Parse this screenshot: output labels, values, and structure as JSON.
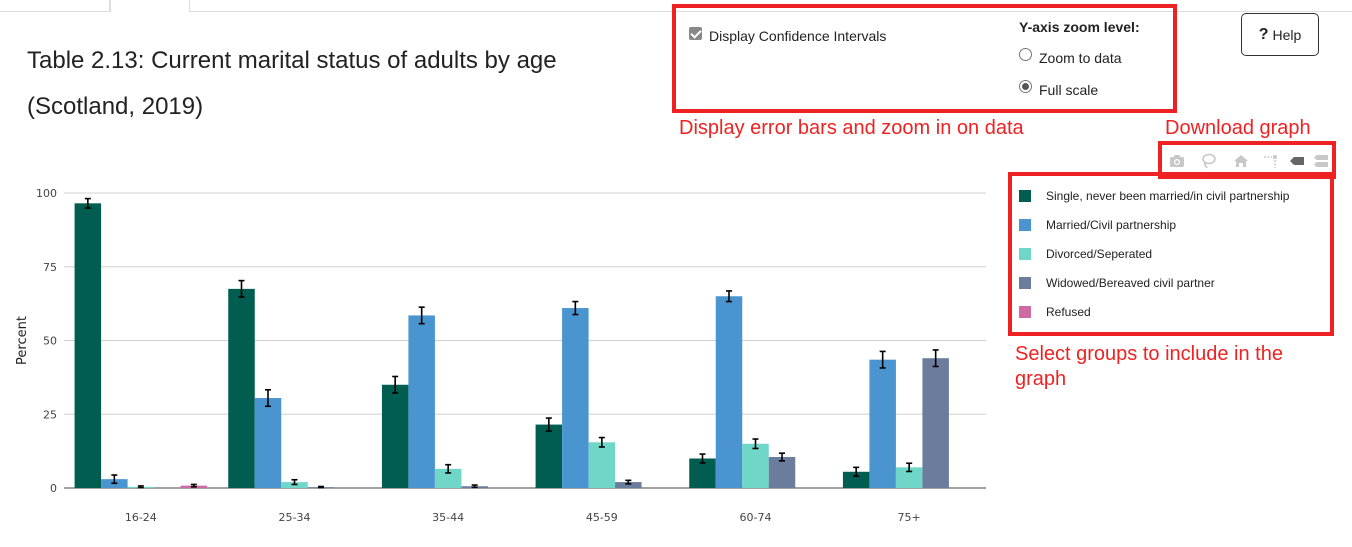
{
  "page": {
    "title_line1": "Table 2.13: Current marital status of adults by age",
    "title_line2": "(Scotland, 2019)"
  },
  "controls": {
    "ci_label": "Display Confidence Intervals",
    "ci_checked": true,
    "zoom_title": "Y-axis zoom level:",
    "zoom_options": [
      {
        "label": "Zoom to data",
        "selected": false
      },
      {
        "label": "Full scale",
        "selected": true
      }
    ]
  },
  "help": {
    "label": "Help",
    "icon": "?"
  },
  "annotations": {
    "controls": "Display error bars and zoom in on data",
    "download": "Download graph",
    "legend_line1": "Select groups to include in the",
    "legend_line2": "graph"
  },
  "modebar": [
    {
      "name": "camera-icon"
    },
    {
      "name": "lasso-icon"
    },
    {
      "name": "home-icon"
    },
    {
      "name": "spike-lines-icon"
    },
    {
      "name": "show-closest-icon"
    },
    {
      "name": "compare-data-icon"
    }
  ],
  "colors": {
    "single": "#005d50",
    "married": "#4a95d0",
    "divorced": "#70d6c8",
    "widowed": "#6b7c9d",
    "refused": "#d06aa4",
    "annotation": "#ee2222"
  },
  "chart_data": {
    "type": "bar",
    "categories": [
      "16-24",
      "25-34",
      "35-44",
      "45-59",
      "60-74",
      "75+"
    ],
    "ylabel": "Percent",
    "ylim": [
      0,
      100
    ],
    "yticks": [
      0,
      25,
      50,
      75,
      100
    ],
    "grid": true,
    "legend_position": "right",
    "series": [
      {
        "name": "Single, never been married/in civil partnership",
        "color": "#005d50",
        "values": [
          96.5,
          67.5,
          35,
          21.5,
          10,
          5.5
        ],
        "ci": [
          1.6,
          2.8,
          2.8,
          2.2,
          1.5,
          1.5
        ]
      },
      {
        "name": "Married/Civil partnership",
        "color": "#4a95d0",
        "values": [
          3,
          30.5,
          58.5,
          61,
          65,
          43.5
        ],
        "ci": [
          1.4,
          2.8,
          2.8,
          2.2,
          1.8,
          2.8
        ]
      },
      {
        "name": "Divorced/Seperated",
        "color": "#70d6c8",
        "values": [
          0.4,
          2,
          6.5,
          15.5,
          15,
          7
        ],
        "ci": [
          0.3,
          0.8,
          1.4,
          1.6,
          1.6,
          1.4
        ]
      },
      {
        "name": "Widowed/Bereaved civil partner",
        "color": "#6b7c9d",
        "values": [
          0,
          0.3,
          0.6,
          2,
          10.5,
          44
        ],
        "ci": [
          0,
          0.2,
          0.4,
          0.6,
          1.3,
          2.8
        ]
      },
      {
        "name": "Refused",
        "color": "#d06aa4",
        "values": [
          0.8,
          0,
          0,
          0,
          0,
          0
        ],
        "ci": [
          0.4,
          0,
          0,
          0,
          0,
          0
        ]
      }
    ]
  }
}
